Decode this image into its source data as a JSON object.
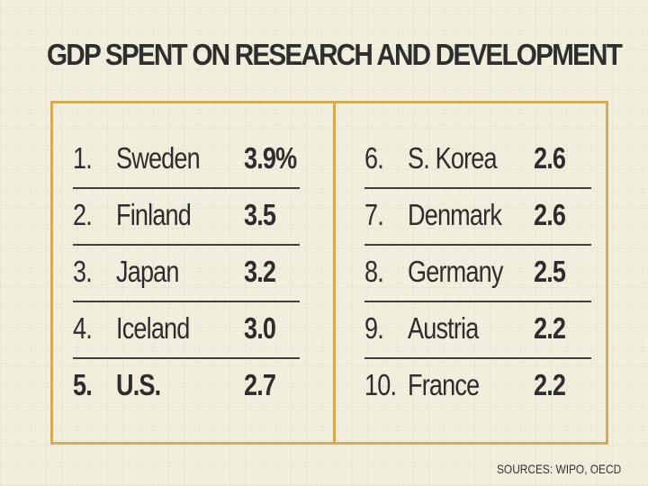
{
  "title": "GDP SPENT ON RESEARCH AND DEVELOPMENT",
  "colors": {
    "frame": "#d4aa52",
    "paper": "#f2eedd",
    "text": "#2d2d2d"
  },
  "table": {
    "left_column": [
      {
        "rank": "1.",
        "country": "Sweden",
        "value": "3.9%"
      },
      {
        "rank": "2.",
        "country": "Finland",
        "value": "3.5"
      },
      {
        "rank": "3.",
        "country": "Japan",
        "value": "3.2"
      },
      {
        "rank": "4.",
        "country": "Iceland",
        "value": "3.0"
      },
      {
        "rank": "5.",
        "country": "U.S.",
        "value": "2.7"
      }
    ],
    "right_column": [
      {
        "rank": "6.",
        "country": "S. Korea",
        "value": "2.6"
      },
      {
        "rank": "7.",
        "country": "Denmark",
        "value": "2.6"
      },
      {
        "rank": "8.",
        "country": "Germany",
        "value": "2.5"
      },
      {
        "rank": "9.",
        "country": "Austria",
        "value": "2.2"
      },
      {
        "rank": "10.",
        "country": "France",
        "value": "2.2"
      }
    ]
  },
  "sources": "SOURCES: WIPO, OECD"
}
